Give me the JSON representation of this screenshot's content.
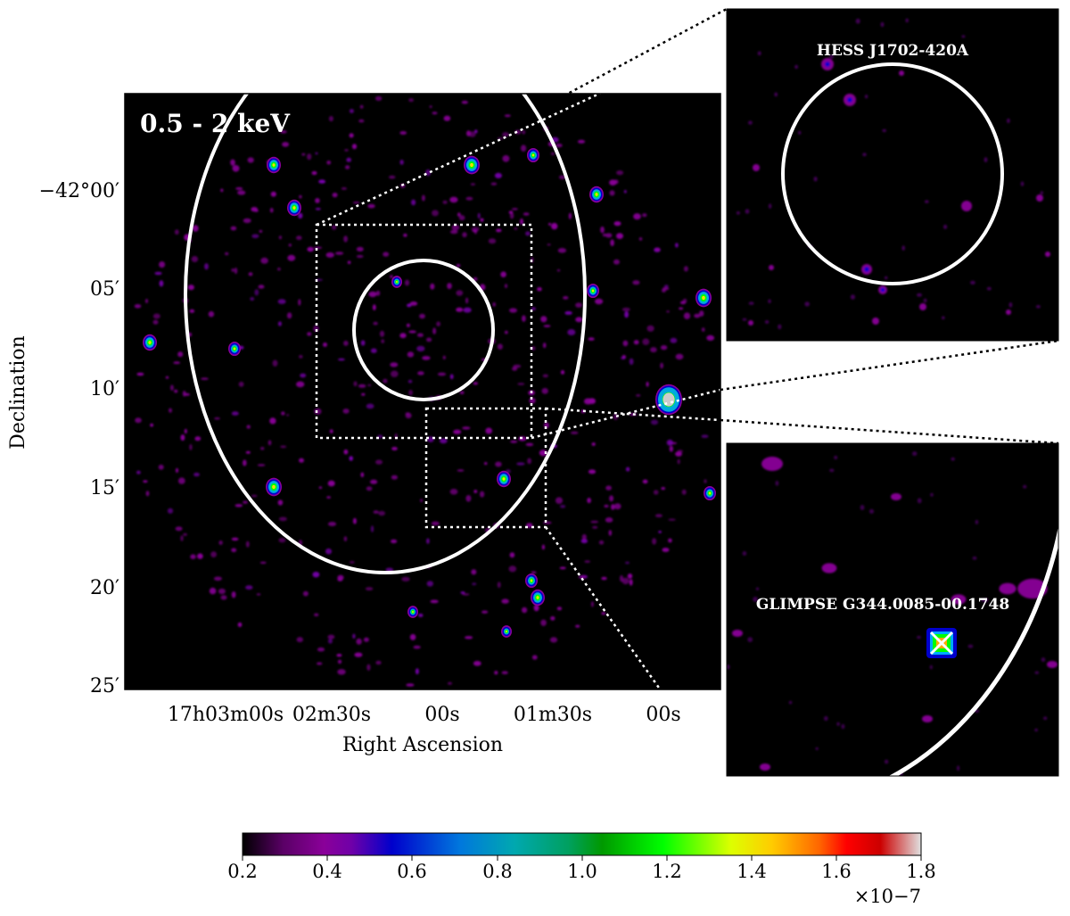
{
  "main_panel": {
    "energy_label": "0.5 - 2 keV",
    "ra_axis": {
      "title": "Right Ascension",
      "ticks": [
        "17h03m00s",
        "02m30s",
        "00s",
        "01m30s",
        "00s"
      ]
    },
    "dec_axis": {
      "title": "Declination",
      "ticks": [
        "−42°00′",
        "05′",
        "10′",
        "15′",
        "20′",
        "25′"
      ]
    }
  },
  "inset_top": {
    "label": "HESS J1702-420A"
  },
  "inset_bottom": {
    "label": "GLIMPSE G344.0085-00.1748"
  },
  "colorbar": {
    "ticks": [
      "0.2",
      "0.4",
      "0.6",
      "0.8",
      "1.0",
      "1.2",
      "1.4",
      "1.6",
      "1.8"
    ],
    "scale_label": "×10−7",
    "colors": [
      "#000000",
      "#8a0099",
      "#0000cc",
      "#0099cc",
      "#00a050",
      "#00ff00",
      "#ffff00",
      "#ff9900",
      "#ff0000",
      "#cc0000",
      "#d0d0d0"
    ]
  }
}
